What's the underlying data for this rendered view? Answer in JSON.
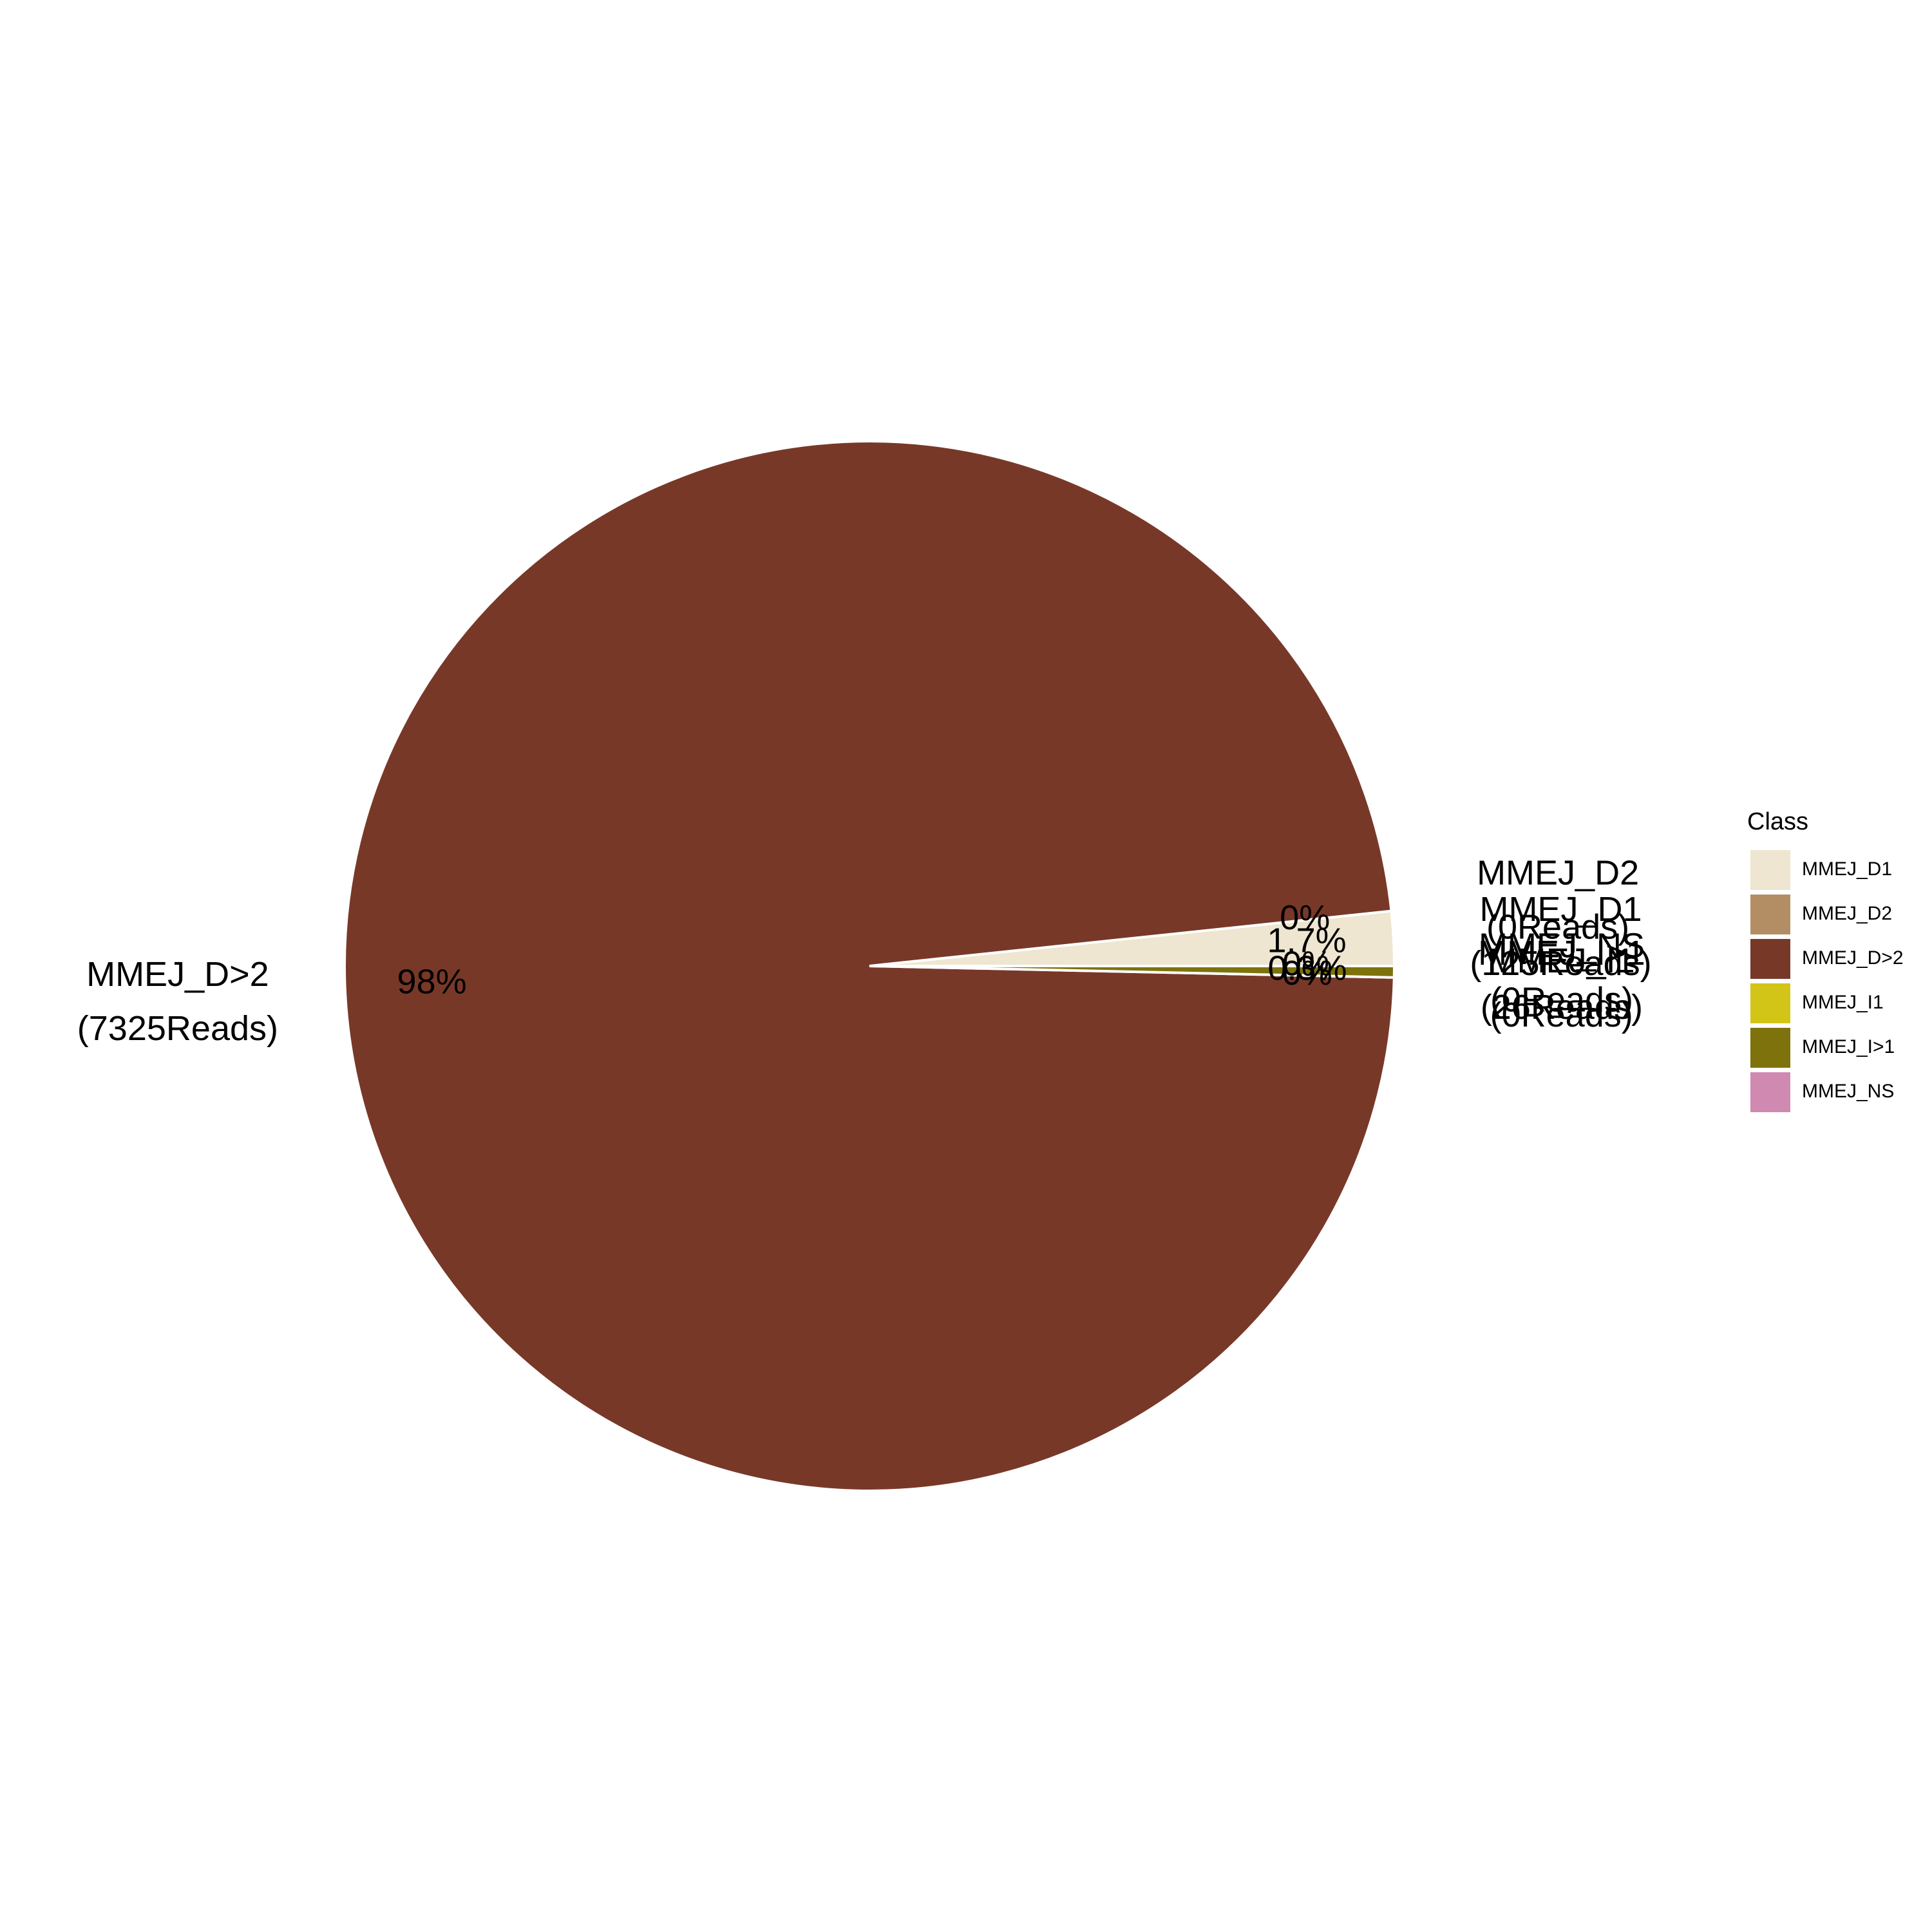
{
  "chart_data": {
    "type": "pie",
    "legend_title": "Class",
    "legend_position": "right",
    "slices": [
      {
        "name": "MMEJ_D1",
        "reads": 125,
        "percent_label": "1.7%",
        "outer_label": "MMEJ_D1",
        "reads_label": "(125Reads)",
        "color": "#EEE6D0"
      },
      {
        "name": "MMEJ_D2",
        "reads": 0,
        "percent_label": "0%",
        "outer_label": "MMEJ_D2",
        "reads_label": "(0Reads)",
        "color": "#B38E65"
      },
      {
        "name": "MMEJ_D>2",
        "reads": 7325,
        "percent_label": "98%",
        "outer_label": "MMEJ_D>2",
        "reads_label": "(7325Reads)",
        "color": "#783828"
      },
      {
        "name": "MMEJ_I1",
        "reads": 0,
        "percent_label": "0%",
        "outer_label": "MMEJ_I1",
        "reads_label": "(0Reads)",
        "color": "#D2C517"
      },
      {
        "name": "MMEJ_I>1",
        "reads": 26,
        "percent_label": "0.3%",
        "outer_label": "MMEJ_I>1",
        "reads_label": "(26Reads)",
        "color": "#7D720C"
      },
      {
        "name": "MMEJ_NS",
        "reads": 0,
        "percent_label": "0%",
        "outer_label": "MMEJ_NS",
        "reads_label": "(0Reads)",
        "color": "#D089B0"
      }
    ]
  }
}
